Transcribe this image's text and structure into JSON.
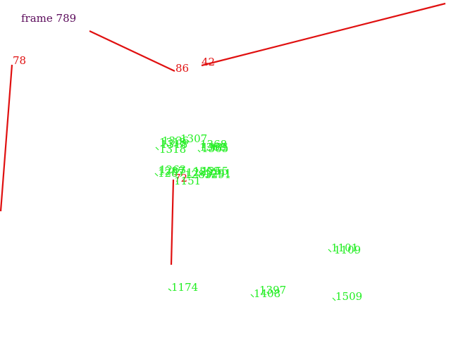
{
  "frame_label": "frame 789",
  "colors": {
    "background": "#ffffff",
    "frame_label": "#5a0a5a",
    "red": "#e01010",
    "green": "#22ee22"
  },
  "red_tracks": [
    {
      "label": "78"
    },
    {
      "label": "86"
    },
    {
      "label": "42"
    },
    {
      "label": "72"
    }
  ],
  "green_labels": [
    "1307",
    "1318",
    "1368",
    "1365",
    "1287",
    "1283",
    "1291",
    "1151",
    "1101",
    "1109",
    "1174",
    "1397",
    "1408",
    "1509"
  ]
}
